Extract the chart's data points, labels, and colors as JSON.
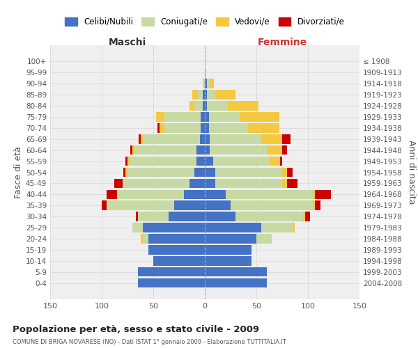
{
  "age_groups": [
    "0-4",
    "5-9",
    "10-14",
    "15-19",
    "20-24",
    "25-29",
    "30-34",
    "35-39",
    "40-44",
    "45-49",
    "50-54",
    "55-59",
    "60-64",
    "65-69",
    "70-74",
    "75-79",
    "80-84",
    "85-89",
    "90-94",
    "95-99",
    "100+"
  ],
  "birth_years": [
    "2004-2008",
    "1999-2003",
    "1994-1998",
    "1989-1993",
    "1984-1988",
    "1979-1983",
    "1974-1978",
    "1969-1973",
    "1964-1968",
    "1959-1963",
    "1954-1958",
    "1949-1953",
    "1944-1948",
    "1939-1943",
    "1934-1938",
    "1929-1933",
    "1924-1928",
    "1919-1923",
    "1914-1918",
    "1909-1913",
    "≤ 1908"
  ],
  "colors": {
    "celibi": "#4472C4",
    "coniugati": "#c8daa4",
    "vedovi": "#f5c842",
    "divorziati": "#cc0000",
    "background": "#ffffff",
    "grid": "#cccccc"
  },
  "maschi": {
    "celibi": [
      65,
      65,
      50,
      55,
      55,
      60,
      35,
      30,
      20,
      15,
      10,
      8,
      8,
      5,
      4,
      4,
      2,
      2,
      0,
      0,
      0
    ],
    "coniugati": [
      0,
      0,
      0,
      0,
      5,
      10,
      30,
      65,
      65,
      65,
      65,
      65,
      60,
      55,
      35,
      35,
      8,
      5,
      2,
      0,
      0
    ],
    "vedovi": [
      0,
      0,
      0,
      0,
      2,
      0,
      0,
      0,
      0,
      0,
      2,
      2,
      2,
      2,
      5,
      8,
      5,
      5,
      0,
      0,
      0
    ],
    "divorziati": [
      0,
      0,
      0,
      0,
      0,
      0,
      2,
      5,
      10,
      8,
      2,
      2,
      2,
      2,
      2,
      0,
      0,
      0,
      0,
      0,
      0
    ]
  },
  "femmine": {
    "nubili": [
      60,
      60,
      45,
      45,
      50,
      55,
      30,
      25,
      20,
      10,
      10,
      8,
      5,
      5,
      4,
      4,
      2,
      2,
      2,
      1,
      0
    ],
    "coniugate": [
      0,
      0,
      0,
      0,
      15,
      30,
      65,
      80,
      85,
      65,
      65,
      55,
      55,
      50,
      38,
      30,
      20,
      8,
      2,
      0,
      0
    ],
    "vedove": [
      0,
      0,
      0,
      0,
      0,
      2,
      2,
      2,
      2,
      5,
      5,
      10,
      15,
      20,
      30,
      38,
      30,
      20,
      5,
      0,
      0
    ],
    "divorziate": [
      0,
      0,
      0,
      0,
      0,
      0,
      5,
      5,
      15,
      10,
      5,
      2,
      5,
      8,
      0,
      0,
      0,
      0,
      0,
      0,
      0
    ]
  },
  "title": "Popolazione per età, sesso e stato civile - 2009",
  "subtitle": "COMUNE DI BRIGA NOVARESE (NO) - Dati ISTAT 1° gennaio 2009 - Elaborazione TUTTITALIA.IT",
  "xlabel_left": "Maschi",
  "xlabel_right": "Femmine",
  "ylabel_left": "Fasce di età",
  "ylabel_right": "Anni di nascita",
  "xlim": 150,
  "legend_labels": [
    "Celibi/Nubili",
    "Coniugati/e",
    "Vedovi/e",
    "Divorziati/e"
  ]
}
